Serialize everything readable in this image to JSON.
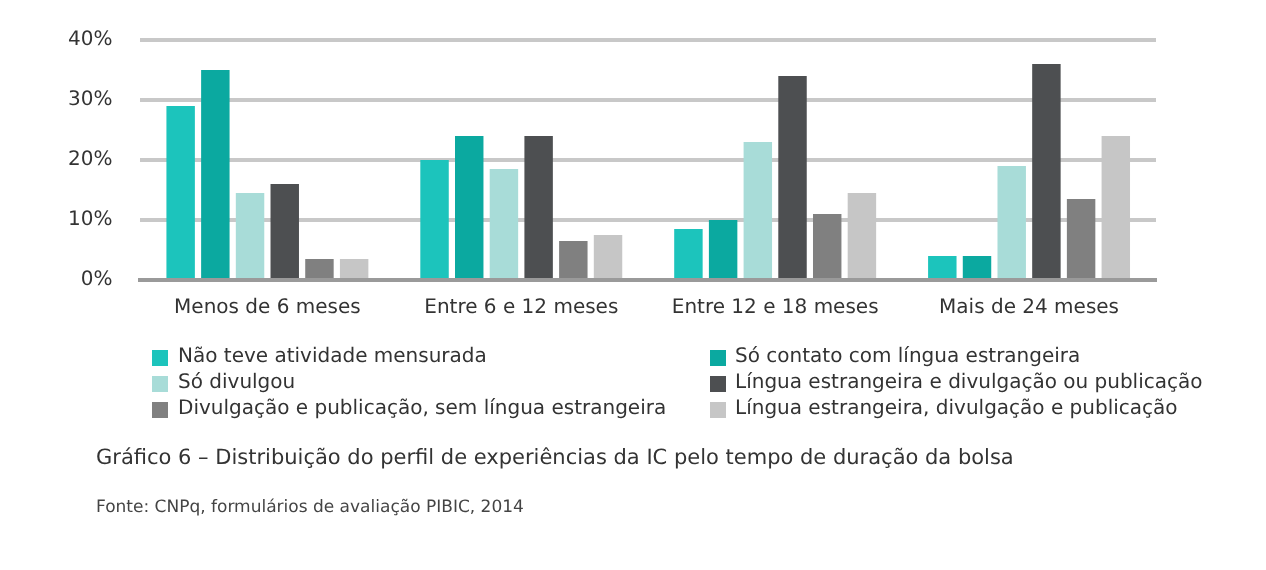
{
  "chart_data": {
    "type": "bar",
    "title": "Gráfico  6  –  Distribuição do perfil de experiências da IC pelo tempo de duração da bolsa",
    "annotations": [
      "Fonte: CNPq, formulários de avaliação PIBIC, 2014"
    ],
    "categories": [
      "Menos de 6 meses",
      "Entre 6 e 12 meses",
      "Entre 12 e 18 meses",
      "Mais de 24 meses"
    ],
    "series": [
      {
        "name": "Não teve atividade mensurada",
        "color": "#1cc4bc",
        "values": [
          29,
          20,
          8.5,
          4
        ]
      },
      {
        "name": "Só contato com língua estrangeira",
        "color": "#0ba9a0",
        "values": [
          35,
          24,
          10,
          4
        ]
      },
      {
        "name": "Só divulgou",
        "color": "#a8dcd8",
        "values": [
          14.5,
          18.5,
          23,
          19
        ]
      },
      {
        "name": "Língua estrangeira e divulgação ou publicação",
        "color": "#4d4f51",
        "values": [
          16,
          24,
          34,
          36
        ]
      },
      {
        "name": "Divulgação e publicação, sem língua estrangeira",
        "color": "#808080",
        "values": [
          3.5,
          6.5,
          11,
          13.5
        ]
      },
      {
        "name": "Língua estrangeira, divulgação e publicação",
        "color": "#c6c6c6",
        "values": [
          3.5,
          7.5,
          14.5,
          24
        ]
      }
    ],
    "ylim": [
      0,
      40
    ],
    "yticks": [
      {
        "value": 0,
        "label": "0%"
      },
      {
        "value": 10,
        "label": "10%"
      },
      {
        "value": 20,
        "label": "20%"
      },
      {
        "value": 30,
        "label": "30%"
      },
      {
        "value": 40,
        "label": "40%"
      }
    ],
    "grid": "y",
    "legend": "bottom"
  }
}
